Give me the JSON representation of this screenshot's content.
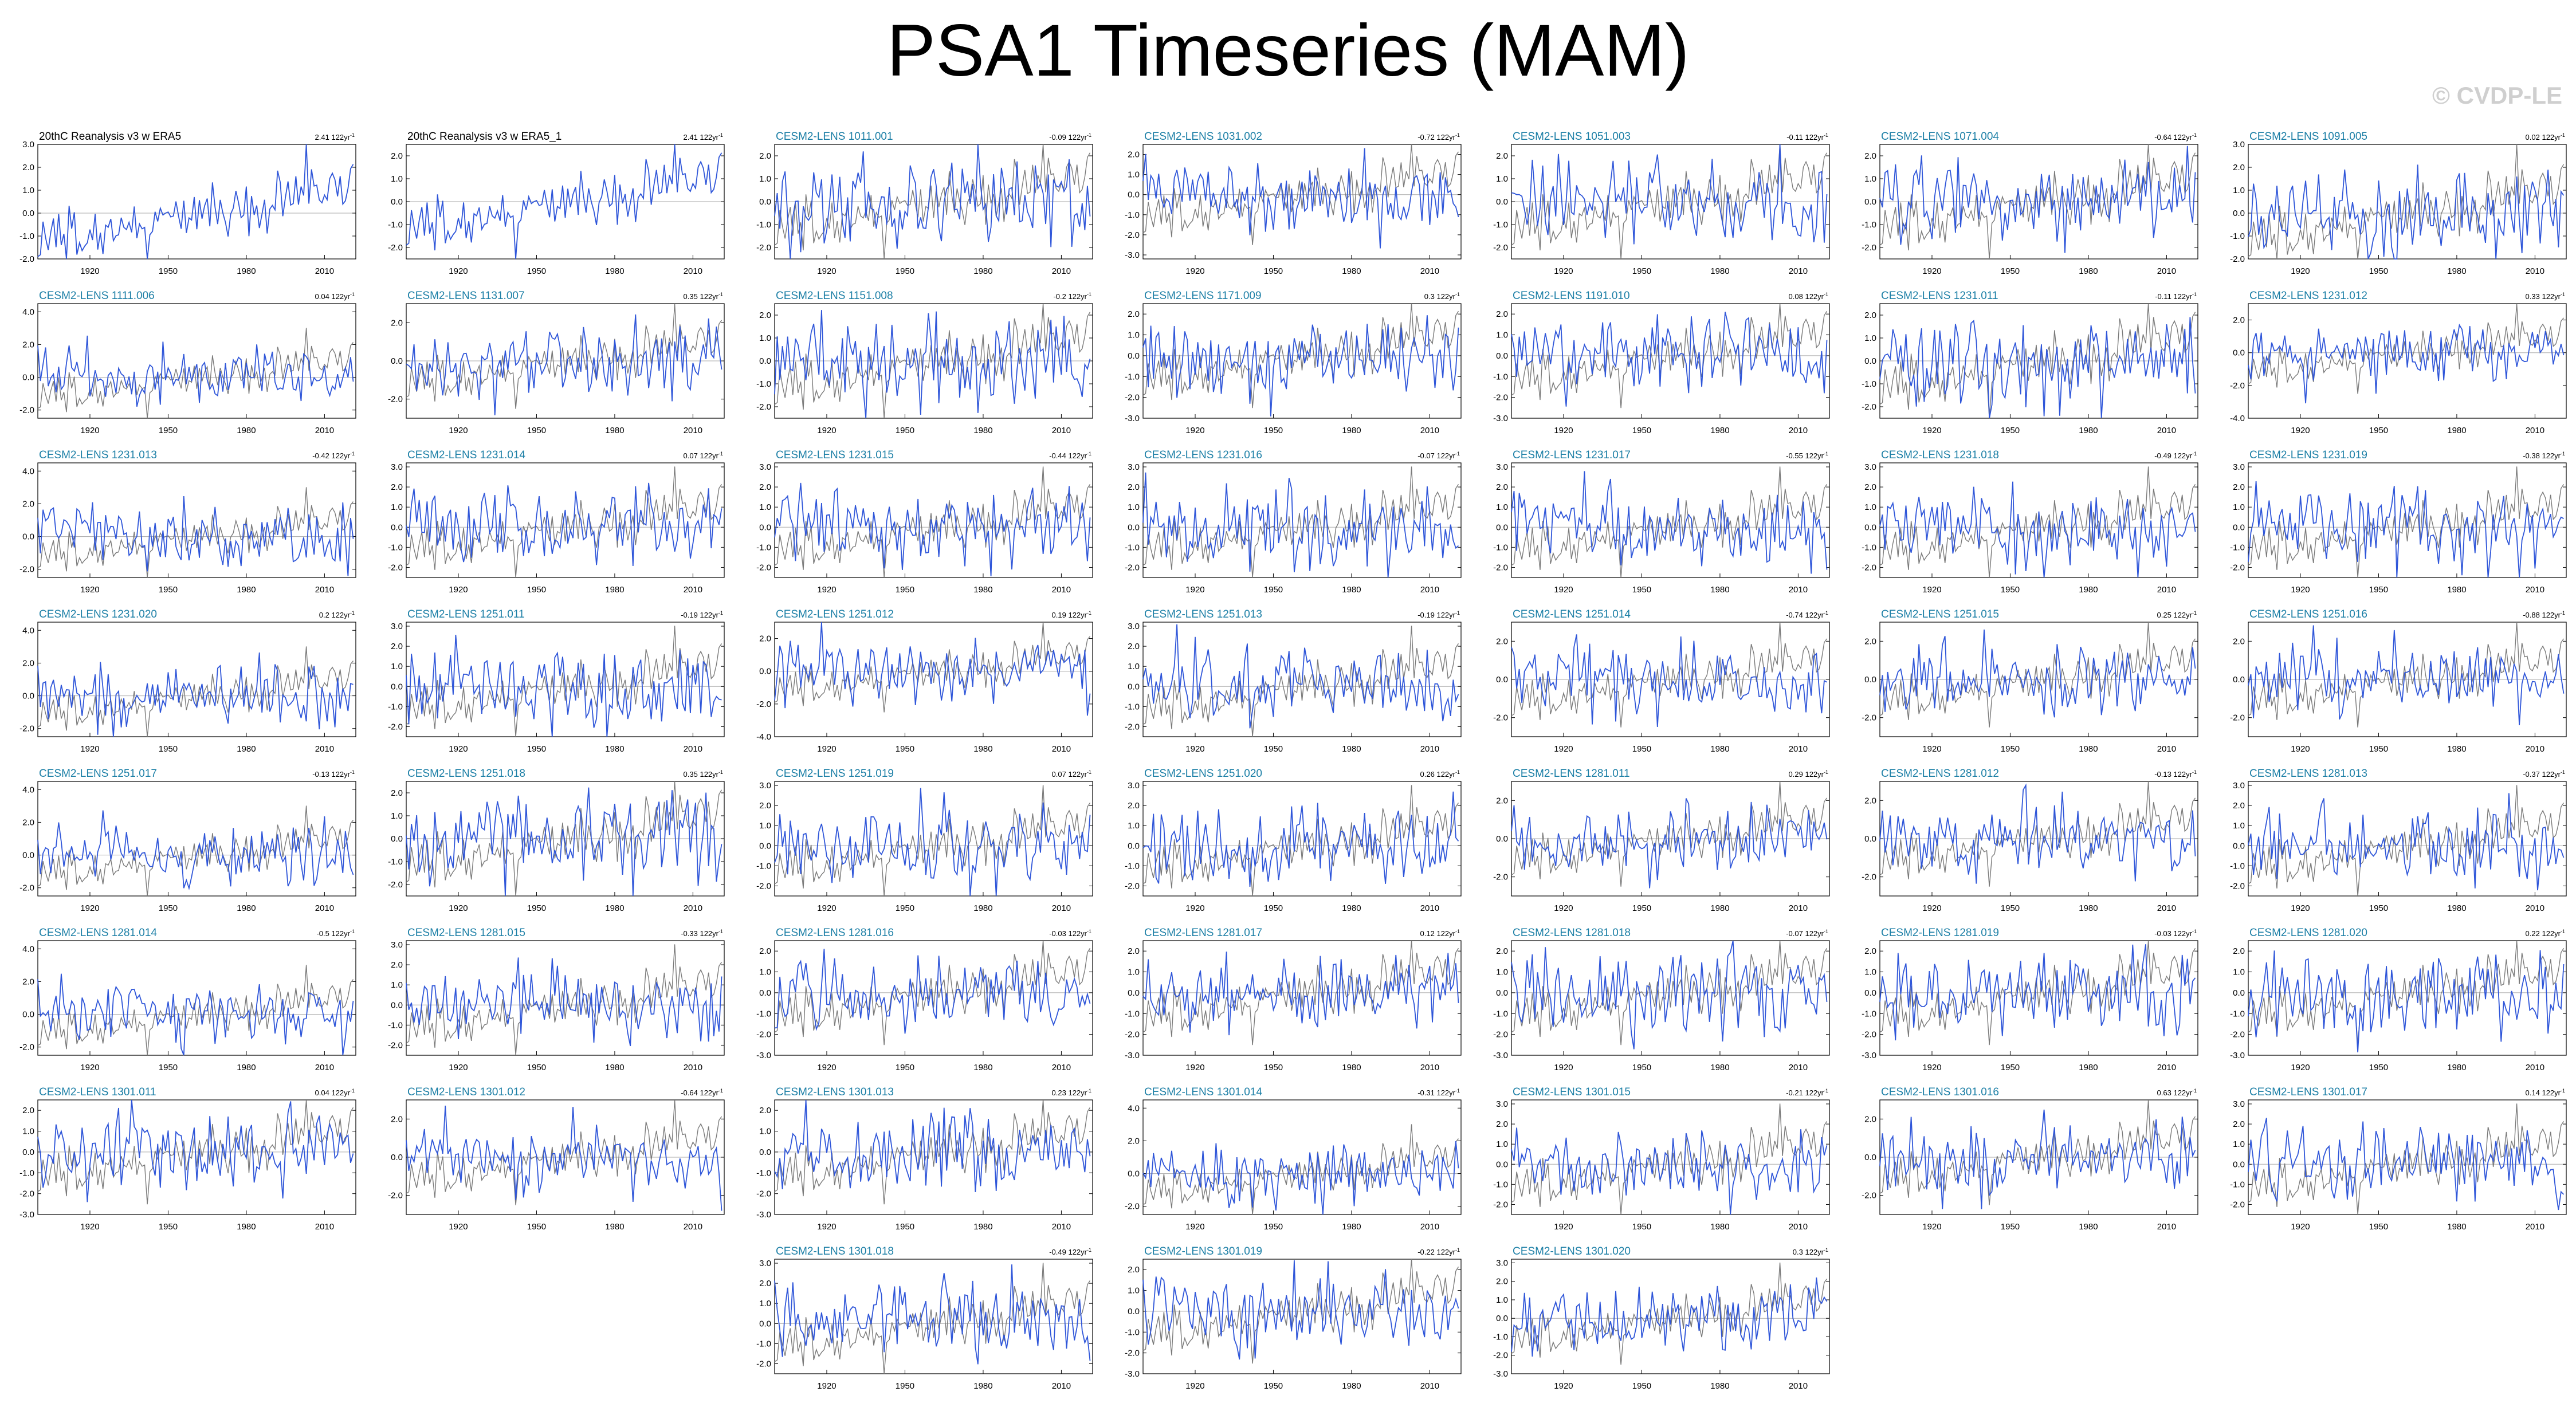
{
  "page": {
    "title": "PSA1 Timeseries (MAM)",
    "watermark": "© CVDP-LE"
  },
  "colors": {
    "model_series": "#2f56d9",
    "obs_reference": "#7a7a7a",
    "obs_title": "#000000",
    "model_title": "#1c7fa6",
    "zero_line": "#aaaaaa",
    "frame": "#000000"
  },
  "chart_data": {
    "type": "line",
    "x_range": [
      1900,
      2022
    ],
    "x_ticks": [
      "1920",
      "1950",
      "1980",
      "2010"
    ],
    "trend_unit_superscript": "-1",
    "series_note": "Blue = panel series; gray = observational reference (20thC Reanalysis v3 w ERA5) overlaid on model panels. Individual yearly values not readable at this resolution; shapes are illustrative.",
    "panels": [
      {
        "title": "20thC Reanalysis v3 w ERA5",
        "trend": "2.41 122yr",
        "obs": true,
        "yticks": [
          "3.0",
          "2.0",
          "1.0",
          "0.0",
          "-1.0",
          "-2.0"
        ],
        "ylim": [
          -2.0,
          3.0
        ]
      },
      {
        "title": "20thC Reanalysis v3 w ERA5_1",
        "trend": "2.41 122yr",
        "obs": true,
        "yticks": [
          "2.0",
          "1.0",
          "0.0",
          "-1.0",
          "-2.0"
        ],
        "ylim": [
          -2.5,
          2.5
        ]
      },
      {
        "title": "CESM2-LENS 1011.001",
        "trend": "-0.09 122yr",
        "obs": false,
        "yticks": [
          "2.0",
          "1.0",
          "0.0",
          "-1.0",
          "-2.0"
        ],
        "ylim": [
          -2.5,
          2.5
        ]
      },
      {
        "title": "CESM2-LENS 1031.002",
        "trend": "-0.72 122yr",
        "obs": false,
        "yticks": [
          "2.0",
          "1.0",
          "0.0",
          "-1.0",
          "-2.0",
          "-3.0"
        ],
        "ylim": [
          -3.2,
          2.5
        ]
      },
      {
        "title": "CESM2-LENS 1051.003",
        "trend": "-0.11 122yr",
        "obs": false,
        "yticks": [
          "2.0",
          "1.0",
          "0.0",
          "-1.0",
          "-2.0"
        ],
        "ylim": [
          -2.5,
          2.5
        ]
      },
      {
        "title": "CESM2-LENS 1071.004",
        "trend": "-0.64 122yr",
        "obs": false,
        "yticks": [
          "2.0",
          "1.0",
          "0.0",
          "-1.0",
          "-2.0"
        ],
        "ylim": [
          -2.5,
          2.5
        ]
      },
      {
        "title": "CESM2-LENS 1091.005",
        "trend": "0.02 122yr",
        "obs": false,
        "yticks": [
          "3.0",
          "2.0",
          "1.0",
          "0.0",
          "-1.0",
          "-2.0"
        ],
        "ylim": [
          -2.0,
          3.0
        ]
      },
      {
        "title": "CESM2-LENS 1111.006",
        "trend": "0.04 122yr",
        "obs": false,
        "yticks": [
          "4.0",
          "2.0",
          "0.0",
          "-2.0"
        ],
        "ylim": [
          -2.5,
          4.5
        ]
      },
      {
        "title": "CESM2-LENS 1131.007",
        "trend": "0.35 122yr",
        "obs": false,
        "yticks": [
          "2.0",
          "0.0",
          "-2.0"
        ],
        "ylim": [
          -3.0,
          3.0
        ]
      },
      {
        "title": "CESM2-LENS 1151.008",
        "trend": "-0.2 122yr",
        "obs": false,
        "yticks": [
          "2.0",
          "1.0",
          "0.0",
          "-1.0",
          "-2.0"
        ],
        "ylim": [
          -2.5,
          2.5
        ]
      },
      {
        "title": "CESM2-LENS 1171.009",
        "trend": "0.3 122yr",
        "obs": false,
        "yticks": [
          "2.0",
          "1.0",
          "0.0",
          "-1.0",
          "-2.0",
          "-3.0"
        ],
        "ylim": [
          -3.0,
          2.5
        ]
      },
      {
        "title": "CESM2-LENS 1191.010",
        "trend": "0.08 122yr",
        "obs": false,
        "yticks": [
          "2.0",
          "1.0",
          "0.0",
          "-1.0",
          "-2.0",
          "-3.0"
        ],
        "ylim": [
          -3.0,
          2.5
        ]
      },
      {
        "title": "CESM2-LENS 1231.011",
        "trend": "-0.11 122yr",
        "obs": false,
        "yticks": [
          "2.0",
          "1.0",
          "0.0",
          "-1.0",
          "-2.0"
        ],
        "ylim": [
          -2.5,
          2.5
        ]
      },
      {
        "title": "CESM2-LENS 1231.012",
        "trend": "0.33 122yr",
        "obs": false,
        "yticks": [
          "2.0",
          "0.0",
          "-2.0",
          "-4.0"
        ],
        "ylim": [
          -4.0,
          3.0
        ]
      },
      {
        "title": "CESM2-LENS 1231.013",
        "trend": "-0.42 122yr",
        "obs": false,
        "yticks": [
          "4.0",
          "2.0",
          "0.0",
          "-2.0"
        ],
        "ylim": [
          -2.5,
          4.5
        ]
      },
      {
        "title": "CESM2-LENS 1231.014",
        "trend": "0.07 122yr",
        "obs": false,
        "yticks": [
          "3.0",
          "2.0",
          "1.0",
          "0.0",
          "-1.0",
          "-2.0"
        ],
        "ylim": [
          -2.5,
          3.2
        ]
      },
      {
        "title": "CESM2-LENS 1231.015",
        "trend": "-0.44 122yr",
        "obs": false,
        "yticks": [
          "3.0",
          "2.0",
          "1.0",
          "0.0",
          "-1.0",
          "-2.0"
        ],
        "ylim": [
          -2.5,
          3.2
        ]
      },
      {
        "title": "CESM2-LENS 1231.016",
        "trend": "-0.07 122yr",
        "obs": false,
        "yticks": [
          "3.0",
          "2.0",
          "1.0",
          "0.0",
          "-1.0",
          "-2.0"
        ],
        "ylim": [
          -2.5,
          3.2
        ]
      },
      {
        "title": "CESM2-LENS 1231.017",
        "trend": "-0.55 122yr",
        "obs": false,
        "yticks": [
          "3.0",
          "2.0",
          "1.0",
          "0.0",
          "-1.0",
          "-2.0"
        ],
        "ylim": [
          -2.5,
          3.2
        ]
      },
      {
        "title": "CESM2-LENS 1231.018",
        "trend": "-0.49 122yr",
        "obs": false,
        "yticks": [
          "3.0",
          "2.0",
          "1.0",
          "0.0",
          "-1.0",
          "-2.0"
        ],
        "ylim": [
          -2.5,
          3.2
        ]
      },
      {
        "title": "CESM2-LENS 1231.019",
        "trend": "-0.38 122yr",
        "obs": false,
        "yticks": [
          "3.0",
          "2.0",
          "1.0",
          "0.0",
          "-1.0",
          "-2.0"
        ],
        "ylim": [
          -2.5,
          3.2
        ]
      },
      {
        "title": "CESM2-LENS 1231.020",
        "trend": "0.2 122yr",
        "obs": false,
        "yticks": [
          "4.0",
          "2.0",
          "0.0",
          "-2.0"
        ],
        "ylim": [
          -2.5,
          4.5
        ]
      },
      {
        "title": "CESM2-LENS 1251.011",
        "trend": "-0.19 122yr",
        "obs": false,
        "yticks": [
          "3.0",
          "2.0",
          "1.0",
          "0.0",
          "-1.0",
          "-2.0"
        ],
        "ylim": [
          -2.5,
          3.2
        ]
      },
      {
        "title": "CESM2-LENS 1251.012",
        "trend": "0.19 122yr",
        "obs": false,
        "yticks": [
          "2.0",
          "0.0",
          "-2.0",
          "-4.0"
        ],
        "ylim": [
          -4.0,
          3.0
        ]
      },
      {
        "title": "CESM2-LENS 1251.013",
        "trend": "-0.19 122yr",
        "obs": false,
        "yticks": [
          "3.0",
          "2.0",
          "1.0",
          "0.0",
          "-1.0",
          "-2.0"
        ],
        "ylim": [
          -2.5,
          3.2
        ]
      },
      {
        "title": "CESM2-LENS 1251.014",
        "trend": "-0.74 122yr",
        "obs": false,
        "yticks": [
          "2.0",
          "0.0",
          "-2.0"
        ],
        "ylim": [
          -3.0,
          3.0
        ]
      },
      {
        "title": "CESM2-LENS 1251.015",
        "trend": "0.25 122yr",
        "obs": false,
        "yticks": [
          "2.0",
          "0.0",
          "-2.0"
        ],
        "ylim": [
          -3.0,
          3.0
        ]
      },
      {
        "title": "CESM2-LENS 1251.016",
        "trend": "-0.88 122yr",
        "obs": false,
        "yticks": [
          "2.0",
          "0.0",
          "-2.0"
        ],
        "ylim": [
          -3.0,
          3.0
        ]
      },
      {
        "title": "CESM2-LENS 1251.017",
        "trend": "-0.13 122yr",
        "obs": false,
        "yticks": [
          "4.0",
          "2.0",
          "0.0",
          "-2.0"
        ],
        "ylim": [
          -2.5,
          4.5
        ]
      },
      {
        "title": "CESM2-LENS 1251.018",
        "trend": "0.35 122yr",
        "obs": false,
        "yticks": [
          "2.0",
          "1.0",
          "0.0",
          "-1.0",
          "-2.0"
        ],
        "ylim": [
          -2.5,
          2.5
        ]
      },
      {
        "title": "CESM2-LENS 1251.019",
        "trend": "0.07 122yr",
        "obs": false,
        "yticks": [
          "3.0",
          "2.0",
          "1.0",
          "0.0",
          "-1.0",
          "-2.0"
        ],
        "ylim": [
          -2.5,
          3.2
        ]
      },
      {
        "title": "CESM2-LENS 1251.020",
        "trend": "0.26 122yr",
        "obs": false,
        "yticks": [
          "3.0",
          "2.0",
          "1.0",
          "0.0",
          "-1.0",
          "-2.0"
        ],
        "ylim": [
          -2.5,
          3.2
        ]
      },
      {
        "title": "CESM2-LENS 1281.011",
        "trend": "0.29 122yr",
        "obs": false,
        "yticks": [
          "2.0",
          "0.0",
          "-2.0"
        ],
        "ylim": [
          -3.0,
          3.0
        ]
      },
      {
        "title": "CESM2-LENS 1281.012",
        "trend": "-0.13 122yr",
        "obs": false,
        "yticks": [
          "2.0",
          "0.0",
          "-2.0"
        ],
        "ylim": [
          -3.0,
          3.0
        ]
      },
      {
        "title": "CESM2-LENS 1281.013",
        "trend": "-0.37 122yr",
        "obs": false,
        "yticks": [
          "3.0",
          "2.0",
          "1.0",
          "0.0",
          "-1.0",
          "-2.0"
        ],
        "ylim": [
          -2.5,
          3.2
        ]
      },
      {
        "title": "CESM2-LENS 1281.014",
        "trend": "-0.5 122yr",
        "obs": false,
        "yticks": [
          "4.0",
          "2.0",
          "0.0",
          "-2.0"
        ],
        "ylim": [
          -2.5,
          4.5
        ]
      },
      {
        "title": "CESM2-LENS 1281.015",
        "trend": "-0.33 122yr",
        "obs": false,
        "yticks": [
          "3.0",
          "2.0",
          "1.0",
          "0.0",
          "-1.0",
          "-2.0"
        ],
        "ylim": [
          -2.5,
          3.2
        ]
      },
      {
        "title": "CESM2-LENS 1281.016",
        "trend": "-0.03 122yr",
        "obs": false,
        "yticks": [
          "2.0",
          "1.0",
          "0.0",
          "-1.0",
          "-2.0",
          "-3.0"
        ],
        "ylim": [
          -3.0,
          2.5
        ]
      },
      {
        "title": "CESM2-LENS 1281.017",
        "trend": "0.12 122yr",
        "obs": false,
        "yticks": [
          "2.0",
          "1.0",
          "0.0",
          "-1.0",
          "-2.0",
          "-3.0"
        ],
        "ylim": [
          -3.0,
          2.5
        ]
      },
      {
        "title": "CESM2-LENS 1281.018",
        "trend": "-0.07 122yr",
        "obs": false,
        "yticks": [
          "2.0",
          "1.0",
          "0.0",
          "-1.0",
          "-2.0",
          "-3.0"
        ],
        "ylim": [
          -3.0,
          2.5
        ]
      },
      {
        "title": "CESM2-LENS 1281.019",
        "trend": "-0.03 122yr",
        "obs": false,
        "yticks": [
          "2.0",
          "1.0",
          "0.0",
          "-1.0",
          "-2.0",
          "-3.0"
        ],
        "ylim": [
          -3.0,
          2.5
        ]
      },
      {
        "title": "CESM2-LENS 1281.020",
        "trend": "0.22 122yr",
        "obs": false,
        "yticks": [
          "2.0",
          "1.0",
          "0.0",
          "-1.0",
          "-2.0",
          "-3.0"
        ],
        "ylim": [
          -3.0,
          2.5
        ]
      },
      {
        "title": "CESM2-LENS 1301.011",
        "trend": "0.04 122yr",
        "obs": false,
        "yticks": [
          "2.0",
          "1.0",
          "0.0",
          "-1.0",
          "-2.0",
          "-3.0"
        ],
        "ylim": [
          -3.0,
          2.5
        ]
      },
      {
        "title": "CESM2-LENS 1301.012",
        "trend": "-0.64 122yr",
        "obs": false,
        "yticks": [
          "2.0",
          "0.0",
          "-2.0"
        ],
        "ylim": [
          -3.0,
          3.0
        ]
      },
      {
        "title": "CESM2-LENS 1301.013",
        "trend": "0.23 122yr",
        "obs": false,
        "yticks": [
          "2.0",
          "1.0",
          "0.0",
          "-1.0",
          "-2.0",
          "-3.0"
        ],
        "ylim": [
          -3.0,
          2.5
        ]
      },
      {
        "title": "CESM2-LENS 1301.014",
        "trend": "-0.31 122yr",
        "obs": false,
        "yticks": [
          "4.0",
          "2.0",
          "0.0",
          "-2.0"
        ],
        "ylim": [
          -2.5,
          4.5
        ]
      },
      {
        "title": "CESM2-LENS 1301.015",
        "trend": "-0.21 122yr",
        "obs": false,
        "yticks": [
          "3.0",
          "2.0",
          "1.0",
          "0.0",
          "-1.0",
          "-2.0"
        ],
        "ylim": [
          -2.5,
          3.2
        ]
      },
      {
        "title": "CESM2-LENS 1301.016",
        "trend": "0.63 122yr",
        "obs": false,
        "yticks": [
          "2.0",
          "0.0",
          "-2.0"
        ],
        "ylim": [
          -3.0,
          3.0
        ]
      },
      {
        "title": "CESM2-LENS 1301.017",
        "trend": "0.14 122yr",
        "obs": false,
        "yticks": [
          "3.0",
          "2.0",
          "1.0",
          "0.0",
          "-1.0",
          "-2.0"
        ],
        "ylim": [
          -2.5,
          3.2
        ]
      },
      {
        "title": "CESM2-LENS 1301.018",
        "trend": "-0.49 122yr",
        "obs": false,
        "yticks": [
          "3.0",
          "2.0",
          "1.0",
          "0.0",
          "-1.0",
          "-2.0"
        ],
        "ylim": [
          -2.5,
          3.2
        ]
      },
      {
        "title": "CESM2-LENS 1301.019",
        "trend": "-0.22 122yr",
        "obs": false,
        "yticks": [
          "2.0",
          "1.0",
          "0.0",
          "-1.0",
          "-2.0",
          "-3.0"
        ],
        "ylim": [
          -3.0,
          2.5
        ]
      },
      {
        "title": "CESM2-LENS 1301.020",
        "trend": "0.3 122yr",
        "obs": false,
        "yticks": [
          "3.0",
          "2.0",
          "1.0",
          "0.0",
          "-1.0",
          "-2.0",
          "-3.0"
        ],
        "ylim": [
          -3.0,
          3.2
        ]
      }
    ]
  }
}
